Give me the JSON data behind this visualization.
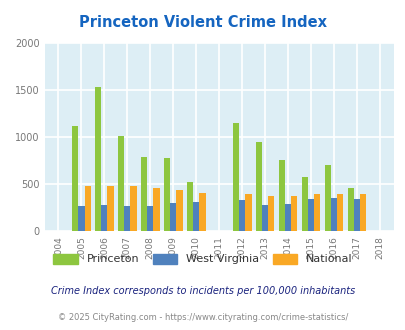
{
  "title": "Princeton Violent Crime Index",
  "years": [
    2004,
    2005,
    2006,
    2007,
    2008,
    2009,
    2010,
    2011,
    2012,
    2013,
    2014,
    2015,
    2016,
    2017,
    2018
  ],
  "princeton": [
    null,
    1120,
    1530,
    1010,
    790,
    780,
    525,
    null,
    1145,
    945,
    760,
    575,
    700,
    455,
    null
  ],
  "west_virginia": [
    null,
    265,
    275,
    265,
    265,
    295,
    305,
    null,
    325,
    275,
    290,
    335,
    355,
    345,
    null
  ],
  "national": [
    null,
    475,
    480,
    475,
    455,
    435,
    405,
    null,
    390,
    370,
    370,
    390,
    395,
    390,
    null
  ],
  "princeton_color": "#8dc63f",
  "wv_color": "#4f81bd",
  "national_color": "#f9a825",
  "bg_color": "#ddeef5",
  "title_color": "#1565c0",
  "ylim": [
    0,
    2000
  ],
  "yticks": [
    0,
    500,
    1000,
    1500,
    2000
  ],
  "ylabel_note": "Crime Index corresponds to incidents per 100,000 inhabitants",
  "footer": "© 2025 CityRating.com - https://www.cityrating.com/crime-statistics/",
  "bar_width": 0.27,
  "grid_color": "#ffffff"
}
